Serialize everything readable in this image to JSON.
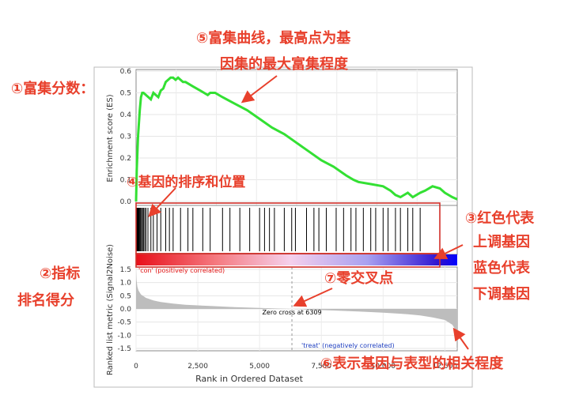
{
  "chart_data": {
    "type": "line",
    "colors": {
      "es_line": "#33e033",
      "hits": "#000000",
      "rank_fill": "#bdbdbd",
      "box": "#d0302a",
      "annotation": "#e8402c"
    },
    "es_plot": {
      "ylabel": "Enrichment score (ES)",
      "y_ticks": [
        "0.6",
        "0.5",
        "0.4",
        "0.3",
        "0.2",
        "0.1",
        "0.0"
      ],
      "ylim": [
        0.0,
        0.6
      ],
      "xlim": [
        0,
        13000
      ],
      "grid": true,
      "series": [
        {
          "x": [
            0,
            30,
            80,
            150,
            200,
            250,
            300,
            400,
            500,
            600,
            700,
            800,
            900,
            1000,
            1100,
            1200,
            1300,
            1400,
            1500,
            1600,
            1700,
            1800,
            1900,
            2000,
            2300,
            2600,
            2900,
            3000,
            3200,
            3500,
            4000,
            4500,
            5000,
            5500,
            6000,
            6500,
            7000,
            7500,
            8000,
            8500,
            8800,
            9000,
            9500,
            10000,
            10300,
            10500,
            10700,
            11000,
            11200,
            11500,
            11700,
            12000,
            12300,
            12500,
            12800,
            13000
          ],
          "y": [
            0.0,
            0.15,
            0.3,
            0.42,
            0.48,
            0.5,
            0.5,
            0.49,
            0.48,
            0.47,
            0.5,
            0.49,
            0.48,
            0.51,
            0.52,
            0.55,
            0.56,
            0.57,
            0.57,
            0.56,
            0.57,
            0.56,
            0.55,
            0.55,
            0.53,
            0.51,
            0.49,
            0.5,
            0.5,
            0.48,
            0.45,
            0.42,
            0.38,
            0.34,
            0.31,
            0.27,
            0.23,
            0.19,
            0.16,
            0.12,
            0.1,
            0.09,
            0.08,
            0.07,
            0.05,
            0.03,
            0.02,
            0.04,
            0.02,
            0.04,
            0.05,
            0.07,
            0.06,
            0.04,
            0.02,
            0.01
          ]
        }
      ]
    },
    "hits": {
      "x": [
        20,
        40,
        60,
        80,
        100,
        120,
        150,
        180,
        220,
        260,
        300,
        350,
        400,
        480,
        600,
        700,
        850,
        1000,
        1200,
        1350,
        1500,
        1800,
        2100,
        2300,
        2700,
        3000,
        3500,
        3800,
        4200,
        4600,
        5000,
        5200,
        5400,
        5600,
        6000,
        6300,
        6450,
        6900,
        7200,
        7400,
        7700,
        8100,
        8400,
        8700,
        8900,
        9200,
        9500,
        9700,
        10000,
        10200,
        10500,
        10700,
        11000,
        11200,
        11500
      ]
    },
    "heatmap_strip": {
      "left": "#e8101a",
      "mid": "#f5d0ec",
      "right": "#2a10d0",
      "end": "#0000ff"
    },
    "rank_plot": {
      "ylabel": "Ranked list metric (Signal2Noise)",
      "y_ticks": [
        "1.5",
        "1.0",
        "0.5",
        "0.0",
        "-0.5",
        "-1.0",
        "-1.5"
      ],
      "ylim": [
        -1.5,
        1.5
      ],
      "xlabel": "Rank in Ordered Dataset",
      "x_ticks": [
        "0",
        "2,500",
        "5,000",
        "7,500",
        "10,000",
        "12,500"
      ],
      "xlim": [
        0,
        13000
      ],
      "grid": true,
      "zero_cross_label": "Zero cross at 6309",
      "zero_cross_at": 6309,
      "pos_label": "'con' (positively correlated)",
      "neg_label": "'treat' (negatively correlated)",
      "series": [
        {
          "x": [
            0,
            20,
            50,
            100,
            200,
            400,
            700,
            1000,
            1500,
            2000,
            3000,
            4000,
            5000,
            6000,
            6309,
            7000,
            8000,
            9000,
            10000,
            11000,
            11500,
            12000,
            12500,
            12800,
            13000
          ],
          "y": [
            1.5,
            1.1,
            0.85,
            0.7,
            0.55,
            0.42,
            0.32,
            0.26,
            0.2,
            0.16,
            0.11,
            0.07,
            0.04,
            0.01,
            0.0,
            -0.03,
            -0.06,
            -0.1,
            -0.14,
            -0.2,
            -0.25,
            -0.32,
            -0.42,
            -0.6,
            -0.9
          ]
        }
      ]
    }
  },
  "annotations": {
    "enrichment_score": "①富集分数：",
    "ranking_metric_line1": "②指标",
    "ranking_metric_line2": "排名得分",
    "up_down_line1": "③红色代表",
    "up_down_line2": "上调基因",
    "up_down_line3": "蓝色代表",
    "up_down_line4": "下调基因",
    "gene_order": "④基因的排序和位置",
    "curve_line1": "⑤富集曲线，最高点为基",
    "curve_line2": "因集的最大富集程度",
    "correlation": "⑥表示基因与表型的相关程度",
    "zero_cross": "⑦零交叉点"
  }
}
